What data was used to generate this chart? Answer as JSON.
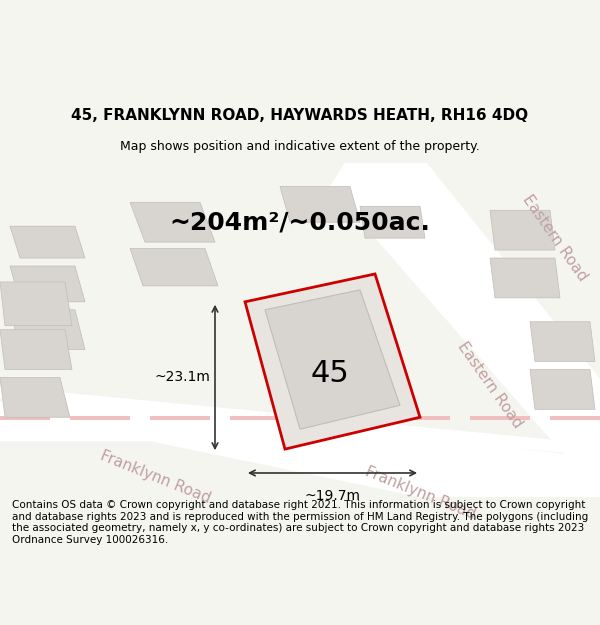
{
  "title_line1": "45, FRANKLYNN ROAD, HAYWARDS HEATH, RH16 4DQ",
  "title_line2": "Map shows position and indicative extent of the property.",
  "area_text": "~204m²/~0.050ac.",
  "width_label": "~19.7m",
  "height_label": "~23.1m",
  "number_label": "45",
  "footer_text": "Contains OS data © Crown copyright and database right 2021. This information is subject to Crown copyright and database rights 2023 and is reproduced with the permission of HM Land Registry. The polygons (including the associated geometry, namely x, y co-ordinates) are subject to Crown copyright and database rights 2023 Ordnance Survey 100026316.",
  "bg_color": "#f5f5f0",
  "map_bg": "#f0ede8",
  "road_color": "#ffffff",
  "building_fill": "#d8d5d0",
  "building_edge": "#c0bdb8",
  "highlight_fill": "#e8e5e0",
  "highlight_edge": "#cc0000",
  "road_label_color": "#c0a0a0",
  "dim_line_color": "#333333",
  "road_stripe_color": "#f0c0c0"
}
